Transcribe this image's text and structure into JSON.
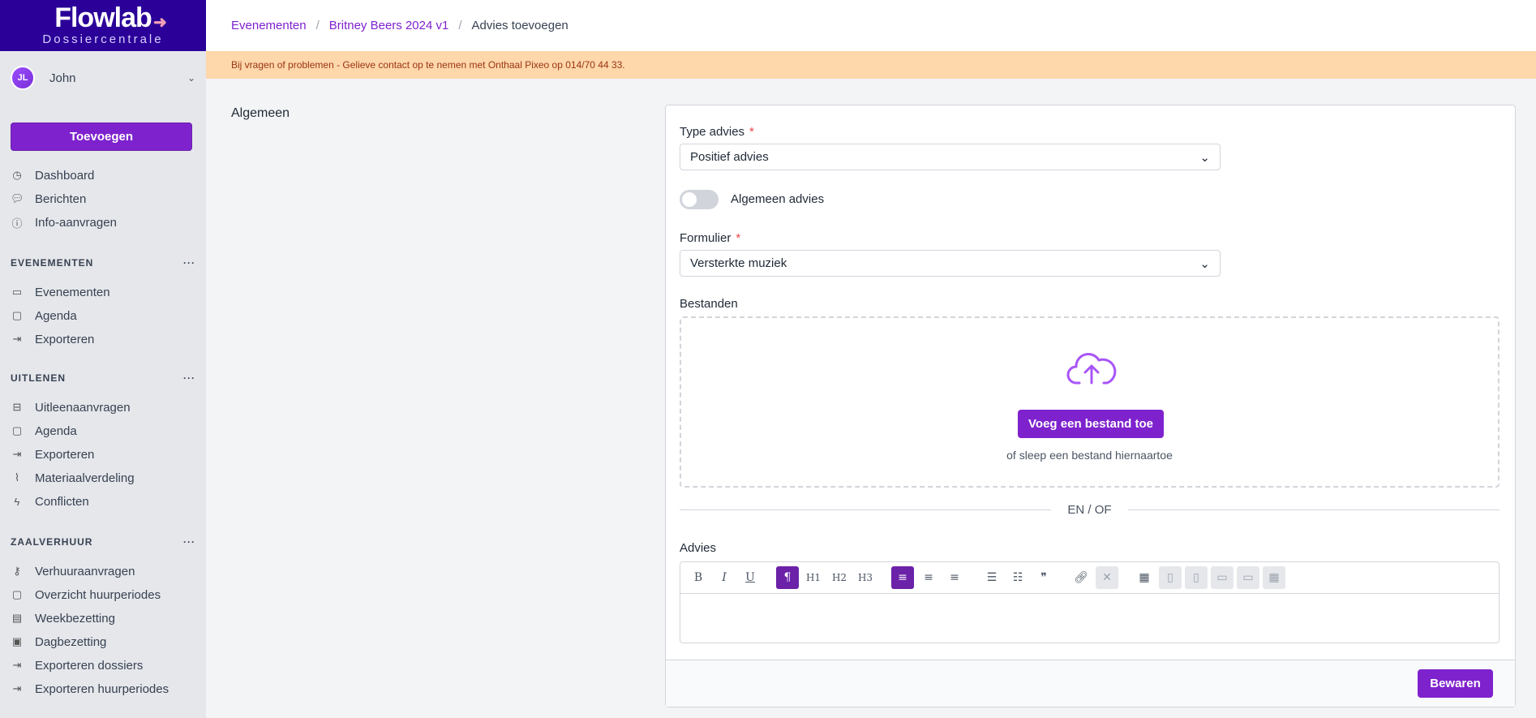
{
  "app": {
    "logo": "Flowlab",
    "subtitle": "Dossiercentrale"
  },
  "user": {
    "initials": "JL",
    "name": "John"
  },
  "sidebar": {
    "add_label": "Toevoegen",
    "top": [
      {
        "label": "Dashboard",
        "icon": "dashboard-icon"
      },
      {
        "label": "Berichten",
        "icon": "messages-icon"
      },
      {
        "label": "Info-aanvragen",
        "icon": "info-icon"
      }
    ],
    "sections": [
      {
        "title": "EVENEMENTEN",
        "items": [
          {
            "label": "Evenementen",
            "icon": "ticket-icon"
          },
          {
            "label": "Agenda",
            "icon": "calendar-icon"
          },
          {
            "label": "Exporteren",
            "icon": "export-icon"
          }
        ]
      },
      {
        "title": "UITLENEN",
        "items": [
          {
            "label": "Uitleenaanvragen",
            "icon": "lend-icon"
          },
          {
            "label": "Agenda",
            "icon": "calendar-icon"
          },
          {
            "label": "Exporteren",
            "icon": "export-icon"
          },
          {
            "label": "Materiaalverdeling",
            "icon": "chart-icon"
          },
          {
            "label": "Conflicten",
            "icon": "bolt-icon"
          }
        ]
      },
      {
        "title": "ZAALVERHUUR",
        "items": [
          {
            "label": "Verhuuraanvragen",
            "icon": "key-icon"
          },
          {
            "label": "Overzicht huurperiodes",
            "icon": "calendar-icon"
          },
          {
            "label": "Weekbezetting",
            "icon": "calendar-week-icon"
          },
          {
            "label": "Dagbezetting",
            "icon": "calendar-day-icon"
          },
          {
            "label": "Exporteren dossiers",
            "icon": "export-icon"
          },
          {
            "label": "Exporteren huurperiodes",
            "icon": "export-icon"
          }
        ]
      }
    ]
  },
  "breadcrumb": [
    "Evenementen",
    "Britney Beers 2024 v1",
    "Advies toevoegen"
  ],
  "banner": "Bij vragen of problemen - Gelieve contact op te nemen met Onthaal Pixeo op 014/70 44 33.",
  "section_title": "Algemeen",
  "form": {
    "type_label": "Type advies",
    "type_value": "Positief advies",
    "toggle_label": "Algemeen advies",
    "toggle_on": false,
    "form_label": "Formulier",
    "form_value": "Versterkte muziek",
    "files_label": "Bestanden",
    "upload_button": "Voeg een bestand toe",
    "drop_hint": "of sleep een bestand hiernaartoe",
    "divider": "EN / OF",
    "advice_label": "Advies",
    "save": "Bewaren"
  },
  "accent": "#7e22ce"
}
